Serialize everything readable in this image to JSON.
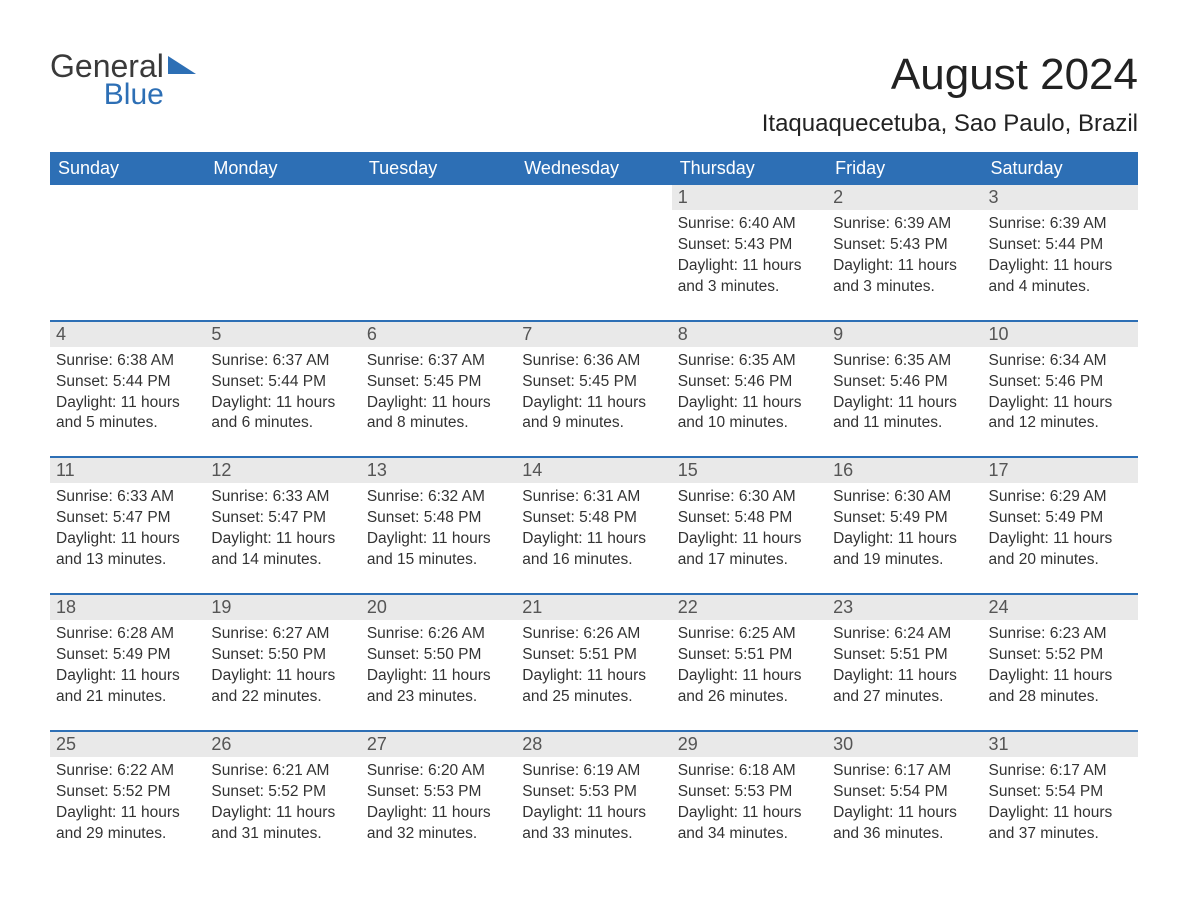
{
  "logo": {
    "line1": "General",
    "line2": "Blue"
  },
  "title": "August 2024",
  "location": "Itaquaquecetuba, Sao Paulo, Brazil",
  "colors": {
    "header_bg": "#2d6fb5",
    "header_text": "#ffffff",
    "daynum_bg": "#e9e9e9",
    "border": "#2d6fb5",
    "body_text": "#333333",
    "background": "#ffffff"
  },
  "day_headers": [
    "Sunday",
    "Monday",
    "Tuesday",
    "Wednesday",
    "Thursday",
    "Friday",
    "Saturday"
  ],
  "weeks": [
    [
      {
        "blank": true
      },
      {
        "blank": true
      },
      {
        "blank": true
      },
      {
        "blank": true
      },
      {
        "day": "1",
        "sunrise": "6:40 AM",
        "sunset": "5:43 PM",
        "daylight": "11 hours and 3 minutes."
      },
      {
        "day": "2",
        "sunrise": "6:39 AM",
        "sunset": "5:43 PM",
        "daylight": "11 hours and 3 minutes."
      },
      {
        "day": "3",
        "sunrise": "6:39 AM",
        "sunset": "5:44 PM",
        "daylight": "11 hours and 4 minutes."
      }
    ],
    [
      {
        "day": "4",
        "sunrise": "6:38 AM",
        "sunset": "5:44 PM",
        "daylight": "11 hours and 5 minutes."
      },
      {
        "day": "5",
        "sunrise": "6:37 AM",
        "sunset": "5:44 PM",
        "daylight": "11 hours and 6 minutes."
      },
      {
        "day": "6",
        "sunrise": "6:37 AM",
        "sunset": "5:45 PM",
        "daylight": "11 hours and 8 minutes."
      },
      {
        "day": "7",
        "sunrise": "6:36 AM",
        "sunset": "5:45 PM",
        "daylight": "11 hours and 9 minutes."
      },
      {
        "day": "8",
        "sunrise": "6:35 AM",
        "sunset": "5:46 PM",
        "daylight": "11 hours and 10 minutes."
      },
      {
        "day": "9",
        "sunrise": "6:35 AM",
        "sunset": "5:46 PM",
        "daylight": "11 hours and 11 minutes."
      },
      {
        "day": "10",
        "sunrise": "6:34 AM",
        "sunset": "5:46 PM",
        "daylight": "11 hours and 12 minutes."
      }
    ],
    [
      {
        "day": "11",
        "sunrise": "6:33 AM",
        "sunset": "5:47 PM",
        "daylight": "11 hours and 13 minutes."
      },
      {
        "day": "12",
        "sunrise": "6:33 AM",
        "sunset": "5:47 PM",
        "daylight": "11 hours and 14 minutes."
      },
      {
        "day": "13",
        "sunrise": "6:32 AM",
        "sunset": "5:48 PM",
        "daylight": "11 hours and 15 minutes."
      },
      {
        "day": "14",
        "sunrise": "6:31 AM",
        "sunset": "5:48 PM",
        "daylight": "11 hours and 16 minutes."
      },
      {
        "day": "15",
        "sunrise": "6:30 AM",
        "sunset": "5:48 PM",
        "daylight": "11 hours and 17 minutes."
      },
      {
        "day": "16",
        "sunrise": "6:30 AM",
        "sunset": "5:49 PM",
        "daylight": "11 hours and 19 minutes."
      },
      {
        "day": "17",
        "sunrise": "6:29 AM",
        "sunset": "5:49 PM",
        "daylight": "11 hours and 20 minutes."
      }
    ],
    [
      {
        "day": "18",
        "sunrise": "6:28 AM",
        "sunset": "5:49 PM",
        "daylight": "11 hours and 21 minutes."
      },
      {
        "day": "19",
        "sunrise": "6:27 AM",
        "sunset": "5:50 PM",
        "daylight": "11 hours and 22 minutes."
      },
      {
        "day": "20",
        "sunrise": "6:26 AM",
        "sunset": "5:50 PM",
        "daylight": "11 hours and 23 minutes."
      },
      {
        "day": "21",
        "sunrise": "6:26 AM",
        "sunset": "5:51 PM",
        "daylight": "11 hours and 25 minutes."
      },
      {
        "day": "22",
        "sunrise": "6:25 AM",
        "sunset": "5:51 PM",
        "daylight": "11 hours and 26 minutes."
      },
      {
        "day": "23",
        "sunrise": "6:24 AM",
        "sunset": "5:51 PM",
        "daylight": "11 hours and 27 minutes."
      },
      {
        "day": "24",
        "sunrise": "6:23 AM",
        "sunset": "5:52 PM",
        "daylight": "11 hours and 28 minutes."
      }
    ],
    [
      {
        "day": "25",
        "sunrise": "6:22 AM",
        "sunset": "5:52 PM",
        "daylight": "11 hours and 29 minutes."
      },
      {
        "day": "26",
        "sunrise": "6:21 AM",
        "sunset": "5:52 PM",
        "daylight": "11 hours and 31 minutes."
      },
      {
        "day": "27",
        "sunrise": "6:20 AM",
        "sunset": "5:53 PM",
        "daylight": "11 hours and 32 minutes."
      },
      {
        "day": "28",
        "sunrise": "6:19 AM",
        "sunset": "5:53 PM",
        "daylight": "11 hours and 33 minutes."
      },
      {
        "day": "29",
        "sunrise": "6:18 AM",
        "sunset": "5:53 PM",
        "daylight": "11 hours and 34 minutes."
      },
      {
        "day": "30",
        "sunrise": "6:17 AM",
        "sunset": "5:54 PM",
        "daylight": "11 hours and 36 minutes."
      },
      {
        "day": "31",
        "sunrise": "6:17 AM",
        "sunset": "5:54 PM",
        "daylight": "11 hours and 37 minutes."
      }
    ]
  ],
  "labels": {
    "sunrise": "Sunrise:",
    "sunset": "Sunset:",
    "daylight": "Daylight:"
  }
}
